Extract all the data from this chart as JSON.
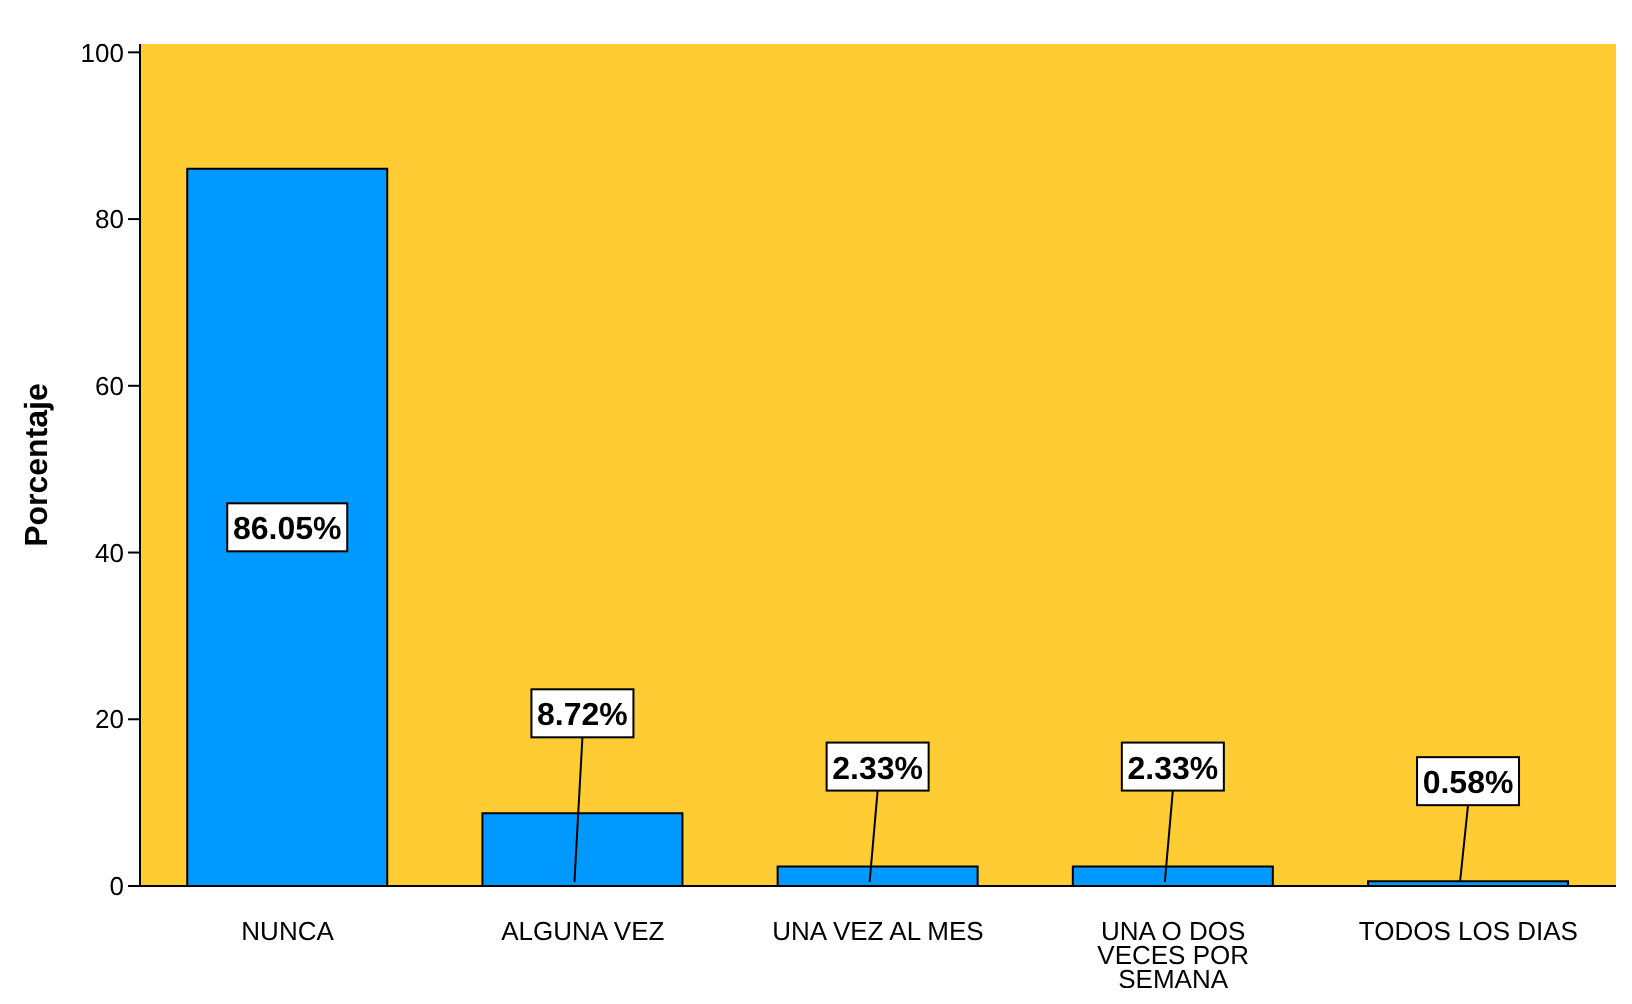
{
  "chart_data": {
    "type": "bar",
    "ylabel": "Porcentaje",
    "categories": [
      "NUNCA",
      "ALGUNA VEZ",
      "UNA VEZ AL MES",
      "UNA O DOS VECES POR SEMANA",
      "TODOS LOS DIAS"
    ],
    "values": [
      86.05,
      8.72,
      2.33,
      2.33,
      0.58
    ],
    "value_labels": [
      "86.05%",
      "8.72%",
      "2.33%",
      "2.33%",
      "0.58%"
    ],
    "color": "#0099ff",
    "ylim": [
      0,
      101
    ],
    "yticks": [
      0,
      20,
      40,
      60,
      80,
      100
    ],
    "grid": false
  }
}
